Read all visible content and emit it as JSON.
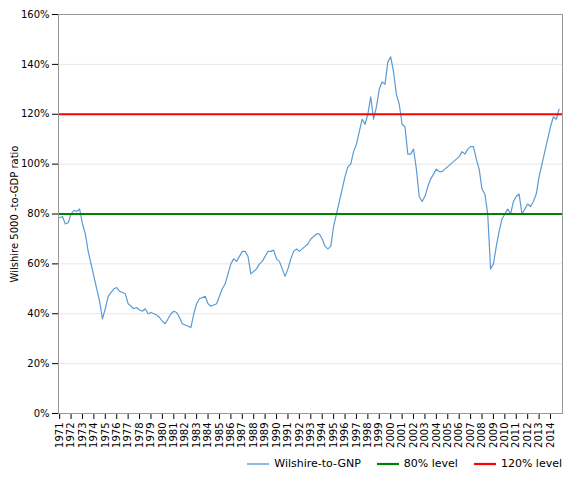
{
  "chart_data": {
    "type": "line",
    "ylabel": "Wilshire 5000 -to-GDP ratio",
    "x": [
      1971.0,
      1971.25,
      1971.5,
      1971.75,
      1972.0,
      1972.25,
      1972.5,
      1972.75,
      1973.0,
      1973.25,
      1973.5,
      1973.75,
      1974.0,
      1974.25,
      1974.5,
      1974.75,
      1975.0,
      1975.25,
      1975.5,
      1975.75,
      1976.0,
      1976.25,
      1976.5,
      1976.75,
      1977.0,
      1977.25,
      1977.5,
      1977.75,
      1978.0,
      1978.25,
      1978.5,
      1978.75,
      1979.0,
      1979.25,
      1979.5,
      1979.75,
      1980.0,
      1980.25,
      1980.5,
      1980.75,
      1981.0,
      1981.25,
      1981.5,
      1981.75,
      1982.0,
      1982.25,
      1982.5,
      1982.75,
      1983.0,
      1983.25,
      1983.5,
      1983.75,
      1984.0,
      1984.25,
      1984.5,
      1984.75,
      1985.0,
      1985.25,
      1985.5,
      1985.75,
      1986.0,
      1986.25,
      1986.5,
      1986.75,
      1987.0,
      1987.25,
      1987.5,
      1987.75,
      1988.0,
      1988.25,
      1988.5,
      1988.75,
      1989.0,
      1989.25,
      1989.5,
      1989.75,
      1990.0,
      1990.25,
      1990.5,
      1990.75,
      1991.0,
      1991.25,
      1991.5,
      1991.75,
      1992.0,
      1992.25,
      1992.5,
      1992.75,
      1993.0,
      1993.25,
      1993.5,
      1993.75,
      1994.0,
      1994.25,
      1994.5,
      1994.75,
      1995.0,
      1995.25,
      1995.5,
      1995.75,
      1996.0,
      1996.25,
      1996.5,
      1996.75,
      1997.0,
      1997.25,
      1997.5,
      1997.75,
      1998.0,
      1998.25,
      1998.5,
      1998.75,
      1999.0,
      1999.25,
      1999.5,
      1999.75,
      2000.0,
      2000.25,
      2000.5,
      2000.75,
      2001.0,
      2001.25,
      2001.5,
      2001.75,
      2002.0,
      2002.25,
      2002.5,
      2002.75,
      2003.0,
      2003.25,
      2003.5,
      2003.75,
      2004.0,
      2004.25,
      2004.5,
      2004.75,
      2005.0,
      2005.25,
      2005.5,
      2005.75,
      2006.0,
      2006.25,
      2006.5,
      2006.75,
      2007.0,
      2007.25,
      2007.5,
      2007.75,
      2008.0,
      2008.25,
      2008.5,
      2008.75,
      2009.0,
      2009.25,
      2009.5,
      2009.75,
      2010.0,
      2010.25,
      2010.5,
      2010.75,
      2011.0,
      2011.25,
      2011.5,
      2011.75,
      2012.0,
      2012.25,
      2012.5,
      2012.75,
      2013.0,
      2013.25,
      2013.5,
      2013.75,
      2014.0,
      2014.25,
      2014.5,
      2014.75
    ],
    "series": [
      {
        "name": "Wilshire-to-GNP",
        "color": "#5B9BD5",
        "values": [
          78.5,
          79.0,
          76.0,
          76.5,
          80.0,
          81.5,
          81.0,
          82.0,
          76.0,
          72.0,
          65.0,
          60.0,
          55.0,
          50.0,
          45.0,
          38.0,
          42.0,
          47.0,
          48.5,
          50.0,
          50.5,
          49.0,
          48.5,
          48.0,
          44.0,
          43.0,
          42.0,
          42.5,
          41.5,
          41.0,
          42.0,
          40.0,
          40.5,
          40.0,
          39.5,
          38.5,
          37.0,
          36.0,
          38.0,
          40.0,
          41.0,
          40.5,
          38.5,
          36.0,
          35.5,
          35.0,
          34.5,
          40.0,
          44.0,
          46.0,
          46.5,
          47.0,
          44.0,
          43.0,
          43.5,
          44.0,
          47.0,
          50.0,
          52.0,
          56.0,
          60.0,
          62.0,
          61.0,
          63.0,
          65.0,
          65.0,
          63.0,
          56.0,
          57.0,
          58.0,
          60.0,
          61.0,
          63.0,
          65.0,
          65.0,
          65.5,
          62.0,
          61.0,
          58.0,
          55.0,
          58.0,
          62.0,
          65.0,
          66.0,
          65.0,
          66.0,
          67.0,
          68.0,
          70.0,
          71.0,
          72.0,
          72.0,
          70.0,
          67.0,
          66.0,
          67.0,
          75.0,
          80.0,
          85.0,
          90.0,
          95.0,
          99.0,
          100.0,
          105.0,
          108.0,
          113.0,
          118.0,
          116.0,
          120.0,
          127.0,
          118.0,
          123.0,
          130.0,
          133.0,
          132.0,
          141.0,
          143.0,
          137.0,
          128.0,
          124.0,
          116.0,
          115.0,
          104.0,
          104.0,
          106.0,
          98.0,
          87.0,
          85.0,
          87.0,
          91.0,
          94.0,
          96.0,
          98.0,
          97.0,
          97.0,
          98.0,
          99.0,
          100.0,
          101.0,
          102.0,
          103.0,
          105.0,
          104.0,
          106.0,
          107.0,
          107.0,
          102.0,
          98.0,
          90.0,
          88.0,
          80.0,
          58.0,
          60.0,
          67.0,
          73.0,
          78.0,
          80.0,
          82.0,
          80.0,
          85.0,
          87.0,
          88.0,
          80.0,
          82.0,
          84.0,
          83.0,
          85.0,
          88.0,
          95.0,
          100.0,
          105.0,
          110.0,
          115.0,
          119.0,
          118.0,
          122.0
        ]
      },
      {
        "name": "80% level",
        "color": "#008000",
        "type": "hline",
        "value": 80
      },
      {
        "name": "120% level",
        "color": "#FF0000",
        "type": "hline",
        "value": 120
      }
    ],
    "xlim": [
      1970.9,
      2015.05
    ],
    "xticks": [
      1971,
      1972,
      1973,
      1974,
      1975,
      1976,
      1977,
      1978,
      1979,
      1980,
      1981,
      1982,
      1983,
      1984,
      1985,
      1986,
      1987,
      1988,
      1989,
      1990,
      1991,
      1992,
      1993,
      1994,
      1995,
      1996,
      1997,
      1998,
      1999,
      2000,
      2001,
      2002,
      2003,
      2004,
      2005,
      2006,
      2007,
      2008,
      2009,
      2010,
      2011,
      2012,
      2013,
      2014
    ],
    "ylim": [
      0,
      160
    ],
    "yticks": [
      {
        "value": 0,
        "label": "0%"
      },
      {
        "value": 20,
        "label": "20%"
      },
      {
        "value": 40,
        "label": "40%"
      },
      {
        "value": 60,
        "label": "60%"
      },
      {
        "value": 80,
        "label": "80%"
      },
      {
        "value": 100,
        "label": "100%"
      },
      {
        "value": 120,
        "label": "120%"
      },
      {
        "value": 140,
        "label": "140%"
      },
      {
        "value": 160,
        "label": "160%"
      }
    ],
    "grid": true,
    "legend": "lower right"
  }
}
